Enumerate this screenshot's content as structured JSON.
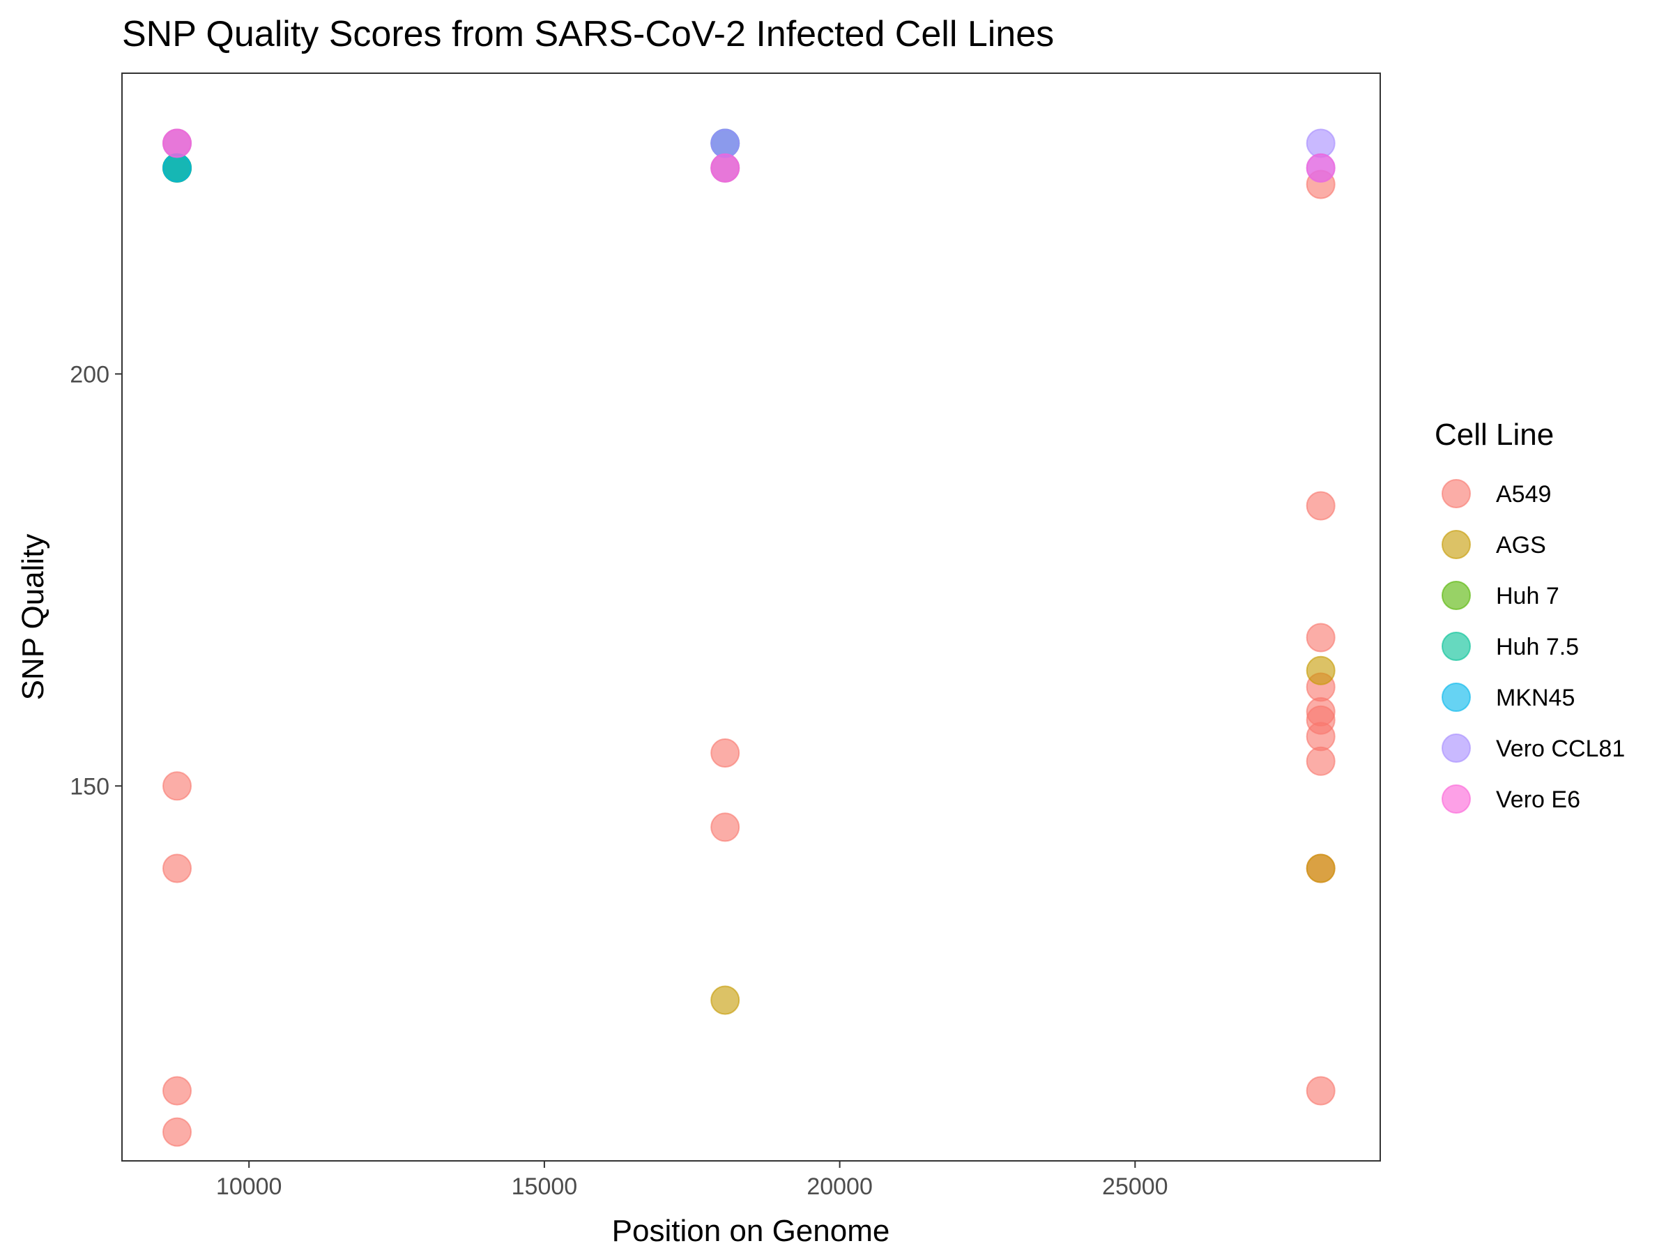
{
  "chart_data": {
    "type": "scatter",
    "title": "SNP Quality Scores from SARS-CoV-2 Infected Cell Lines",
    "xlabel": "Position on Genome",
    "ylabel": "SNP Quality",
    "xlim": [
      7850,
      29150
    ],
    "ylim": [
      104.5,
      236.5
    ],
    "xticks": [
      10000,
      15000,
      20000,
      25000
    ],
    "yticks": [
      150,
      200
    ],
    "grid": false,
    "legend": {
      "title": "Cell Line",
      "position": "right"
    },
    "series": [
      {
        "name": "A549",
        "color": "#F8766D",
        "points": [
          [
            8782,
            225
          ],
          [
            8782,
            228
          ],
          [
            8782,
            150
          ],
          [
            8782,
            140
          ],
          [
            8782,
            113
          ],
          [
            8782,
            108
          ],
          [
            18060,
            225
          ],
          [
            18060,
            228
          ],
          [
            18060,
            154
          ],
          [
            18060,
            145
          ],
          [
            28144,
            223
          ],
          [
            28144,
            184
          ],
          [
            28144,
            168
          ],
          [
            28144,
            162
          ],
          [
            28144,
            159
          ],
          [
            28144,
            158
          ],
          [
            28144,
            156
          ],
          [
            28144,
            153
          ],
          [
            28144,
            140
          ],
          [
            28144,
            113
          ]
        ]
      },
      {
        "name": "AGS",
        "color": "#C49A00",
        "points": [
          [
            8782,
            225
          ],
          [
            18060,
            124
          ],
          [
            28144,
            164
          ],
          [
            28144,
            140
          ]
        ]
      },
      {
        "name": "Huh 7",
        "color": "#53B400",
        "points": [
          [
            8782,
            225
          ]
        ]
      },
      {
        "name": "Huh 7.5",
        "color": "#00C094",
        "points": [
          [
            8782,
            225
          ]
        ]
      },
      {
        "name": "MKN45",
        "color": "#00B6EB",
        "points": [
          [
            8782,
            225
          ],
          [
            18060,
            228
          ]
        ]
      },
      {
        "name": "Vero CCL81",
        "color": "#A58AFF",
        "points": [
          [
            8782,
            228
          ],
          [
            18060,
            228
          ],
          [
            18060,
            225
          ],
          [
            28144,
            228
          ],
          [
            28144,
            225
          ]
        ]
      },
      {
        "name": "Vero E6",
        "color": "#FB61D7",
        "points": [
          [
            8782,
            228
          ],
          [
            18060,
            225
          ],
          [
            28144,
            225
          ]
        ]
      }
    ]
  }
}
